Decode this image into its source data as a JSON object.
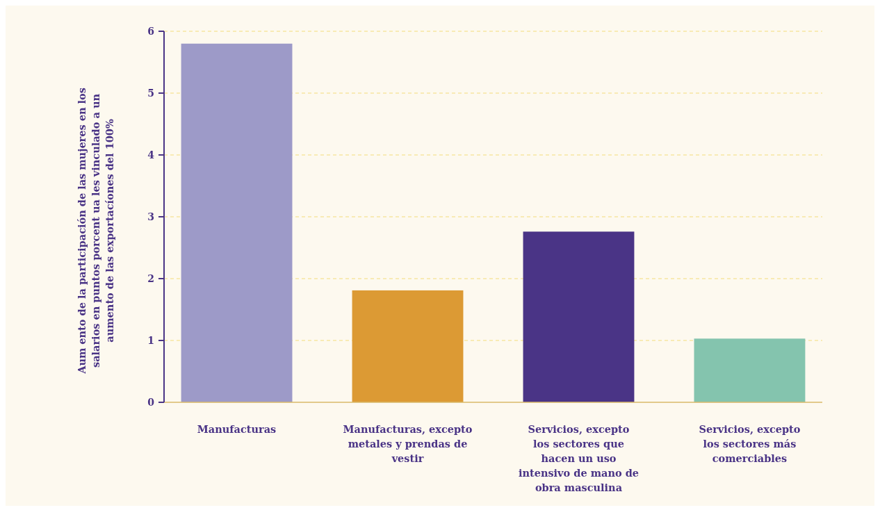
{
  "chart_data": {
    "type": "bar",
    "ylabel": "Aum ento de la participación de las mujeres en los salarios en puntos porcent ua les vinculado a un aumento de las exportacíones del 100%",
    "categories": [
      "Manufacturas",
      "Manufacturas, excepto metales y prendas de vestir",
      "Servicios, excepto los sectores que hacen un uso intensivo de mano de obra masculina",
      "Servicios, excepto los sectores más comerciables"
    ],
    "values": [
      5.8,
      1.81,
      2.76,
      1.03
    ],
    "colors": [
      "#9d9ac8",
      "#dc9a34",
      "#4a3486",
      "#84c4ae"
    ],
    "ylim": [
      0,
      6
    ],
    "yticks": [
      0,
      1,
      2,
      3,
      4,
      5,
      6
    ],
    "grid": "y"
  }
}
